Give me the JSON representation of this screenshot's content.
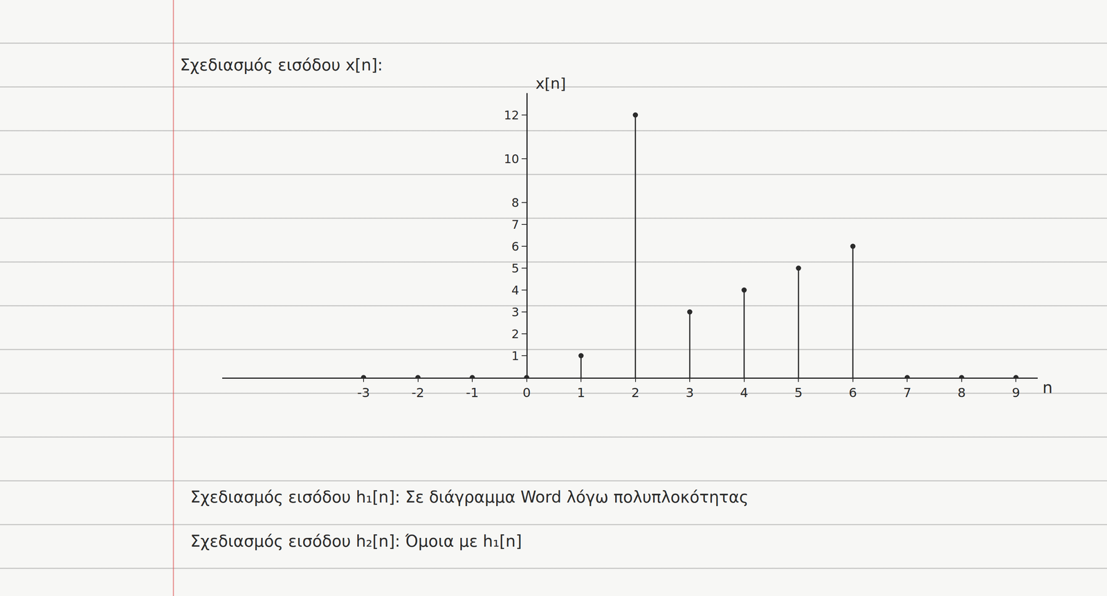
{
  "chart_data": {
    "type": "stem",
    "title": "Σχεδιασμός εισόδου x[n]:",
    "y_label": "x[n]",
    "x_label": "n",
    "x": [
      -3,
      -2,
      -1,
      0,
      1,
      2,
      3,
      4,
      5,
      6,
      7,
      8,
      9
    ],
    "values": [
      0,
      0,
      0,
      0,
      1,
      12,
      3,
      4,
      5,
      6,
      0,
      0,
      0
    ],
    "color": "#2b2b2b",
    "marker": "circle",
    "xlim": [
      -5.6,
      9.4
    ],
    "xticks": [
      -3,
      -2,
      -1,
      0,
      1,
      2,
      3,
      4,
      5,
      6,
      7,
      8,
      9
    ],
    "ylim": [
      0,
      13
    ],
    "yticks": [
      1,
      2,
      3,
      4,
      5,
      6,
      7,
      8,
      10,
      12
    ],
    "grid": false,
    "notes": [
      "Σχεδιασμός εισόδου h₁[n]: Σε διάγραμμα Word λόγω πολυπλοκότητας",
      "Σχεδιασμός εισόδου h₂[n]: Όμοια με h₁[n]"
    ]
  }
}
